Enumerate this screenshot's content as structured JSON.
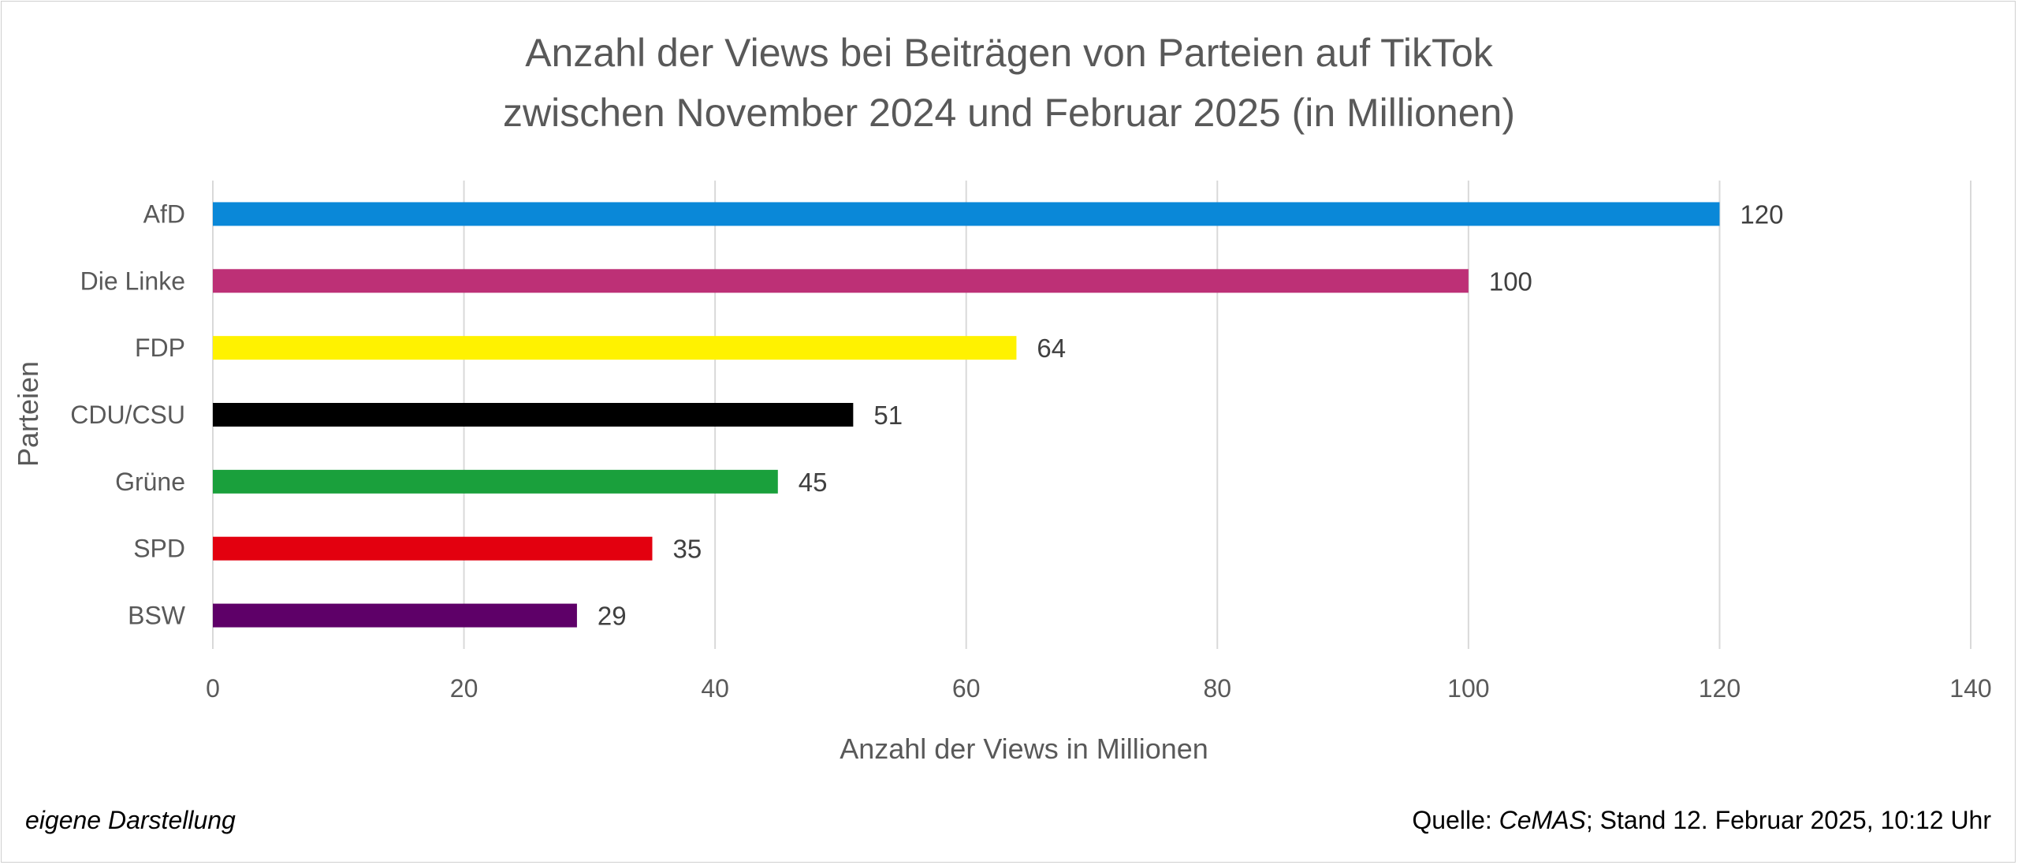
{
  "chart_data": {
    "type": "bar",
    "orientation": "horizontal",
    "title_lines": [
      "Anzahl der Views bei Beiträgen von Parteien auf TikTok",
      "zwischen November 2024 und Februar 2025 (in Millionen)"
    ],
    "xlabel": "Anzahl der Views in Millionen",
    "ylabel": "Parteien",
    "xlim": [
      0,
      140
    ],
    "xticks": [
      0,
      20,
      40,
      60,
      80,
      100,
      120,
      140
    ],
    "grid": true,
    "categories": [
      "AfD",
      "Die Linke",
      "FDP",
      "CDU/CSU",
      "Grüne",
      "SPD",
      "BSW"
    ],
    "values": [
      120,
      100,
      64,
      51,
      45,
      35,
      29
    ],
    "colors": [
      "#0a88d8",
      "#bd3076",
      "#fff200",
      "#000000",
      "#1aa03c",
      "#e3000f",
      "#5e0068"
    ],
    "data_labels": [
      "120",
      "100",
      "64",
      "51",
      "45",
      "35",
      "29"
    ]
  },
  "footer": {
    "left": "eigene Darstellung",
    "source_prefix": "Quelle: ",
    "source_name": "CeMAS",
    "source_suffix": "; Stand 12. Februar 2025, 10:12 Uhr"
  }
}
